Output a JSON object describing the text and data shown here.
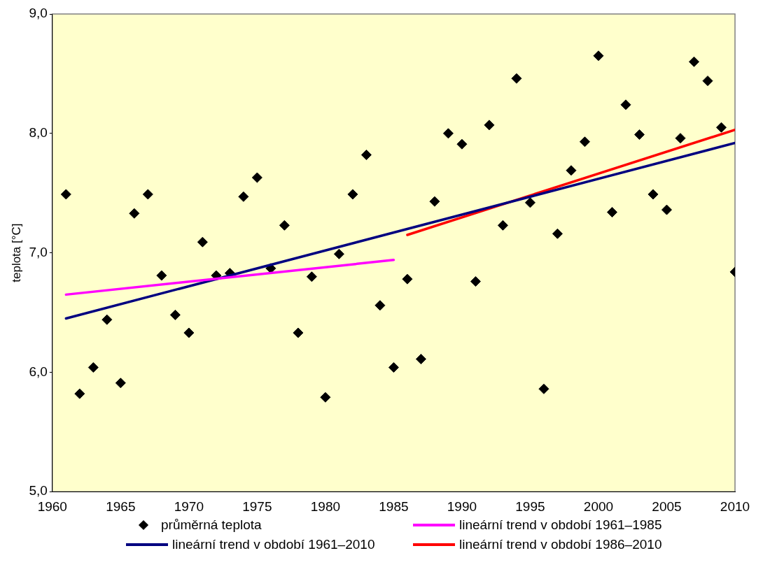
{
  "chart_data": {
    "type": "scatter",
    "ylabel": "teplota [°C]",
    "xlim": [
      1960,
      2010
    ],
    "xticks": [
      1960,
      1965,
      1970,
      1975,
      1980,
      1985,
      1990,
      1995,
      2000,
      2005,
      2010
    ],
    "ylim": [
      5,
      9
    ],
    "yticks": [
      {
        "value": 5,
        "label": "5,0"
      },
      {
        "value": 6,
        "label": "6,0"
      },
      {
        "value": 7,
        "label": "7,0"
      },
      {
        "value": 8,
        "label": "8,0"
      },
      {
        "value": 9,
        "label": "9,0"
      }
    ],
    "grid": false,
    "legend": "bottom",
    "series": [
      {
        "name": "průměrná teplota",
        "type": "scatter",
        "marker": "diamond",
        "color": "#000000",
        "x": [
          1961,
          1962,
          1963,
          1964,
          1965,
          1966,
          1967,
          1968,
          1969,
          1970,
          1971,
          1972,
          1973,
          1974,
          1975,
          1976,
          1977,
          1978,
          1979,
          1980,
          1981,
          1982,
          1983,
          1984,
          1985,
          1986,
          1987,
          1988,
          1989,
          1990,
          1991,
          1992,
          1993,
          1994,
          1995,
          1996,
          1997,
          1998,
          1999,
          2000,
          2001,
          2002,
          2003,
          2004,
          2005,
          2006,
          2007,
          2008,
          2009,
          2010
        ],
        "values": [
          7.49,
          5.82,
          6.04,
          6.44,
          5.91,
          7.33,
          7.49,
          6.81,
          6.48,
          6.33,
          7.09,
          6.81,
          6.83,
          7.47,
          7.63,
          6.87,
          7.23,
          6.33,
          6.8,
          5.79,
          6.99,
          7.49,
          7.82,
          6.56,
          6.04,
          6.78,
          6.11,
          7.43,
          8.0,
          7.91,
          6.76,
          8.07,
          7.23,
          8.46,
          7.42,
          5.86,
          7.16,
          7.69,
          7.93,
          8.65,
          7.34,
          8.24,
          7.99,
          7.49,
          7.36,
          7.96,
          8.6,
          8.44,
          8.05,
          6.84
        ]
      },
      {
        "name": "lineární trend v období 1961–1985",
        "type": "line",
        "marker": "none",
        "color": "#ff00ff",
        "x": [
          1961,
          1985
        ],
        "values": [
          6.65,
          6.94
        ]
      },
      {
        "name": "lineární trend v období 1961–2010",
        "type": "line",
        "marker": "none",
        "color": "#000080",
        "x": [
          1961,
          2010
        ],
        "values": [
          6.45,
          7.92
        ]
      },
      {
        "name": "lineární trend v období 1986–2010",
        "type": "line",
        "marker": "none",
        "color": "#ff0000",
        "x": [
          1986,
          2010
        ],
        "values": [
          7.15,
          8.03
        ]
      }
    ]
  }
}
